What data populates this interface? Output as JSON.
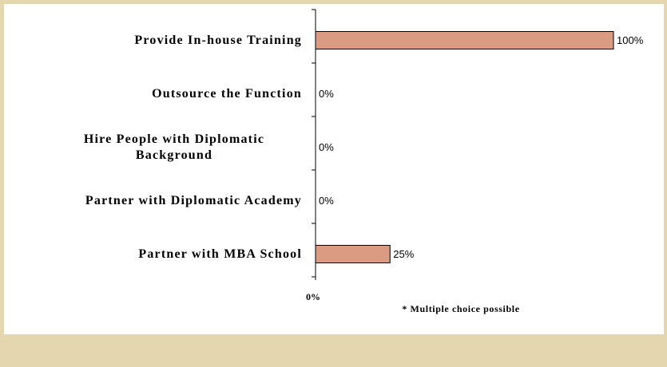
{
  "chart_data": {
    "type": "bar",
    "orientation": "horizontal",
    "categories": [
      "Provide In-house Training",
      "Outsource the Function",
      "Hire People with Diplomatic Background",
      "Partner with Diplomatic Academy",
      "Partner with MBA School"
    ],
    "values": [
      100,
      0,
      0,
      0,
      25
    ],
    "value_labels": [
      "100%",
      "0%",
      "0%",
      "0%",
      "25%"
    ],
    "color": "#d99b82",
    "xlim": [
      0,
      100
    ],
    "xticks": [
      {
        "value": 0,
        "label": "0%"
      }
    ],
    "annotation": "* Multiple choice possible"
  }
}
